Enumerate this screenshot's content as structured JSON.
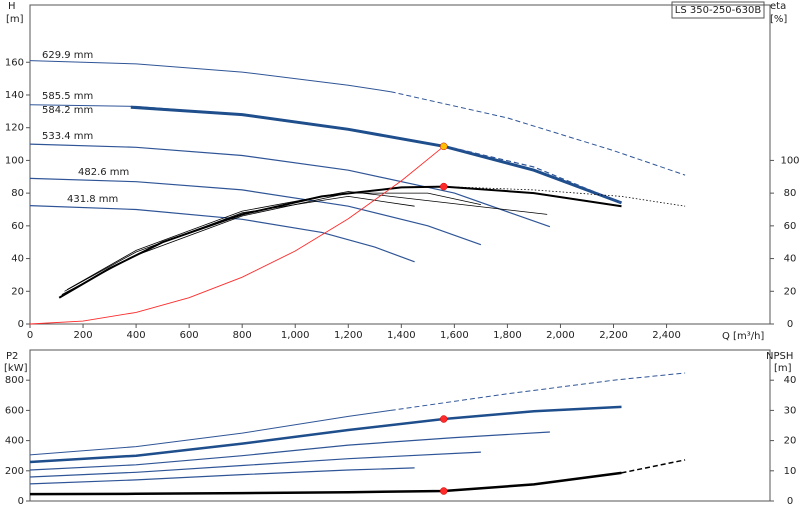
{
  "chart_data": [
    {
      "type": "line",
      "title": "LS 350-250-630B",
      "x_label": "Q [m³/h]",
      "y_label": "H",
      "y_unit": "[m]",
      "y2_label": "eta",
      "y2_unit": "[%]",
      "xlim": [
        0,
        2790
      ],
      "xticks": [
        0,
        200,
        400,
        600,
        800,
        {
          "value": 1000,
          "label": "1,000"
        },
        {
          "value": 1200,
          "label": "1,200"
        },
        {
          "value": 1400,
          "label": "1,400"
        },
        {
          "value": 1600,
          "label": "1,600"
        },
        {
          "value": 1800,
          "label": "1,800"
        },
        {
          "value": 2000,
          "label": "2,000"
        },
        {
          "value": 2200,
          "label": "2,200"
        },
        {
          "value": 2400,
          "label": "2,400"
        }
      ],
      "ylim": [
        0,
        195
      ],
      "yticks": [
        0,
        20,
        40,
        60,
        80,
        100,
        120,
        140,
        160
      ],
      "y2lim": [
        0,
        195
      ],
      "y2ticks": [
        0,
        20,
        40,
        60,
        80,
        100
      ],
      "series": [
        {
          "name": "629.9 mm",
          "color": "#2f5597",
          "width": 1,
          "x": [
            0,
            400,
            800,
            1200,
            1360
          ],
          "values": [
            161,
            159,
            154,
            146,
            142
          ]
        },
        {
          "color": "#2f5597",
          "width": 1,
          "dash": "dashed",
          "x": [
            1360,
            1800,
            2200,
            2470
          ],
          "values": [
            142,
            126,
            106,
            91
          ]
        },
        {
          "name": "585.5 mm",
          "color": "#2f5597",
          "width": 1,
          "x": [
            0,
            400,
            800,
            1200,
            1560
          ],
          "values": [
            134,
            133,
            128,
            119,
            109
          ]
        },
        {
          "name": "584.2 mm",
          "color": "#1f4e8c",
          "width": 3,
          "x": [
            380,
            800,
            1200,
            1560,
            1900,
            2230
          ],
          "values": [
            132.5,
            128,
            119,
            108.6,
            94,
            74
          ]
        },
        {
          "color": "#2f5597",
          "width": 1.2,
          "dash": "dashed",
          "x": [
            1560,
            1900,
            2230
          ],
          "values": [
            109,
            96,
            74
          ]
        },
        {
          "name": "533.4 mm",
          "color": "#2f5597",
          "width": 1.2,
          "x": [
            0,
            400,
            800,
            1200,
            1600,
            1960
          ],
          "values": [
            110,
            108,
            103,
            94,
            80,
            59.5
          ]
        },
        {
          "name": "482.6 mm",
          "color": "#2f5597",
          "width": 1.2,
          "x": [
            0,
            400,
            800,
            1200,
            1500,
            1700
          ],
          "values": [
            89,
            87,
            82,
            72,
            60,
            48.5
          ]
        },
        {
          "name": "431.8 mm",
          "color": "#2f5597",
          "width": 1.2,
          "x": [
            0,
            400,
            800,
            1100,
            1300,
            1450
          ],
          "values": [
            72.4,
            70,
            64,
            56,
            47,
            38
          ]
        },
        {
          "color": "#000000",
          "width": 2,
          "axis": "y2",
          "x": [
            110,
            300,
            500,
            800,
            1100,
            1400,
            1560,
            1900,
            2230
          ],
          "values": [
            16,
            34,
            50,
            67,
            78,
            83.5,
            84,
            80,
            72
          ]
        },
        {
          "color": "#000000",
          "width": 0.8,
          "axis": "y2",
          "dash": "dotted",
          "x": [
            1560,
            1900,
            2230,
            2470
          ],
          "values": [
            84,
            82,
            78,
            72
          ]
        },
        {
          "color": "#000000",
          "width": 0.8,
          "axis": "y2",
          "x": [
            120,
            400,
            800,
            1200,
            1500,
            1700
          ],
          "values": [
            18,
            42,
            66,
            80,
            80,
            73
          ]
        },
        {
          "color": "#000000",
          "width": 0.8,
          "axis": "y2",
          "x": [
            130,
            400,
            800,
            1200,
            1450
          ],
          "values": [
            20,
            44,
            68,
            78,
            72
          ]
        },
        {
          "color": "#000000",
          "width": 0.8,
          "axis": "y2",
          "x": [
            140,
            400,
            800,
            1200,
            1950
          ],
          "values": [
            21,
            45,
            69,
            81,
            67
          ]
        },
        {
          "color": "#ff2a2a",
          "width": 0.9,
          "x": [
            0,
            200,
            400,
            600,
            800,
            1000,
            1200,
            1400,
            1560
          ],
          "values": [
            0,
            1.8,
            7.1,
            16.1,
            28.6,
            44.6,
            64.3,
            87.5,
            108.6
          ]
        }
      ],
      "points": [
        {
          "x": 1560,
          "value": 108.6,
          "color": "#ffc000"
        },
        {
          "x": 1560,
          "value": 84,
          "color": "#ff2a2a",
          "axis": "y2"
        }
      ]
    },
    {
      "type": "line",
      "y_label": "P2",
      "y_unit": "[kW]",
      "y2_label": "NPSH",
      "y2_unit": "[m]",
      "xlim": [
        0,
        2790
      ],
      "ylim": [
        0,
        1000
      ],
      "yticks": [
        0,
        200,
        400,
        600,
        800
      ],
      "y2lim": [
        0,
        50
      ],
      "y2ticks": [
        0,
        10,
        20,
        30,
        40
      ],
      "series": [
        {
          "color": "#2f5597",
          "width": 1,
          "x": [
            0,
            400,
            800,
            1200,
            1360
          ],
          "values": [
            305,
            360,
            450,
            560,
            600
          ]
        },
        {
          "color": "#2f5597",
          "width": 1,
          "dash": "dashed",
          "x": [
            1360,
            1800,
            2200,
            2470
          ],
          "values": [
            600,
            710,
            800,
            848
          ]
        },
        {
          "color": "#1f4e8c",
          "width": 2.5,
          "x": [
            0,
            400,
            800,
            1200,
            1560,
            1900,
            2230
          ],
          "values": [
            258,
            300,
            380,
            470,
            543,
            595,
            623
          ]
        },
        {
          "color": "#2f5597",
          "width": 1.2,
          "x": [
            0,
            400,
            800,
            1200,
            1600,
            1960
          ],
          "values": [
            205,
            240,
            300,
            370,
            420,
            457
          ]
        },
        {
          "color": "#2f5597",
          "width": 1.2,
          "x": [
            0,
            400,
            800,
            1200,
            1700
          ],
          "values": [
            159,
            190,
            235,
            280,
            324
          ]
        },
        {
          "color": "#2f5597",
          "width": 1.2,
          "x": [
            0,
            400,
            800,
            1200,
            1450
          ],
          "values": [
            113,
            140,
            175,
            205,
            219
          ]
        },
        {
          "color": "#000000",
          "width": 2.5,
          "axis": "y2",
          "x": [
            0,
            400,
            800,
            1200,
            1560,
            1900,
            2230
          ],
          "values": [
            2.3,
            2.4,
            2.6,
            2.9,
            3.3,
            5.5,
            9.3
          ]
        },
        {
          "color": "#000000",
          "width": 1.5,
          "axis": "y2",
          "dash": "dashed",
          "x": [
            2230,
            2470
          ],
          "values": [
            9.3,
            13.6
          ]
        }
      ],
      "points": [
        {
          "x": 1560,
          "value": 543,
          "color": "#ff2a2a"
        },
        {
          "x": 1560,
          "value": 3.3,
          "color": "#ff2a2a",
          "axis": "y2"
        }
      ]
    }
  ]
}
